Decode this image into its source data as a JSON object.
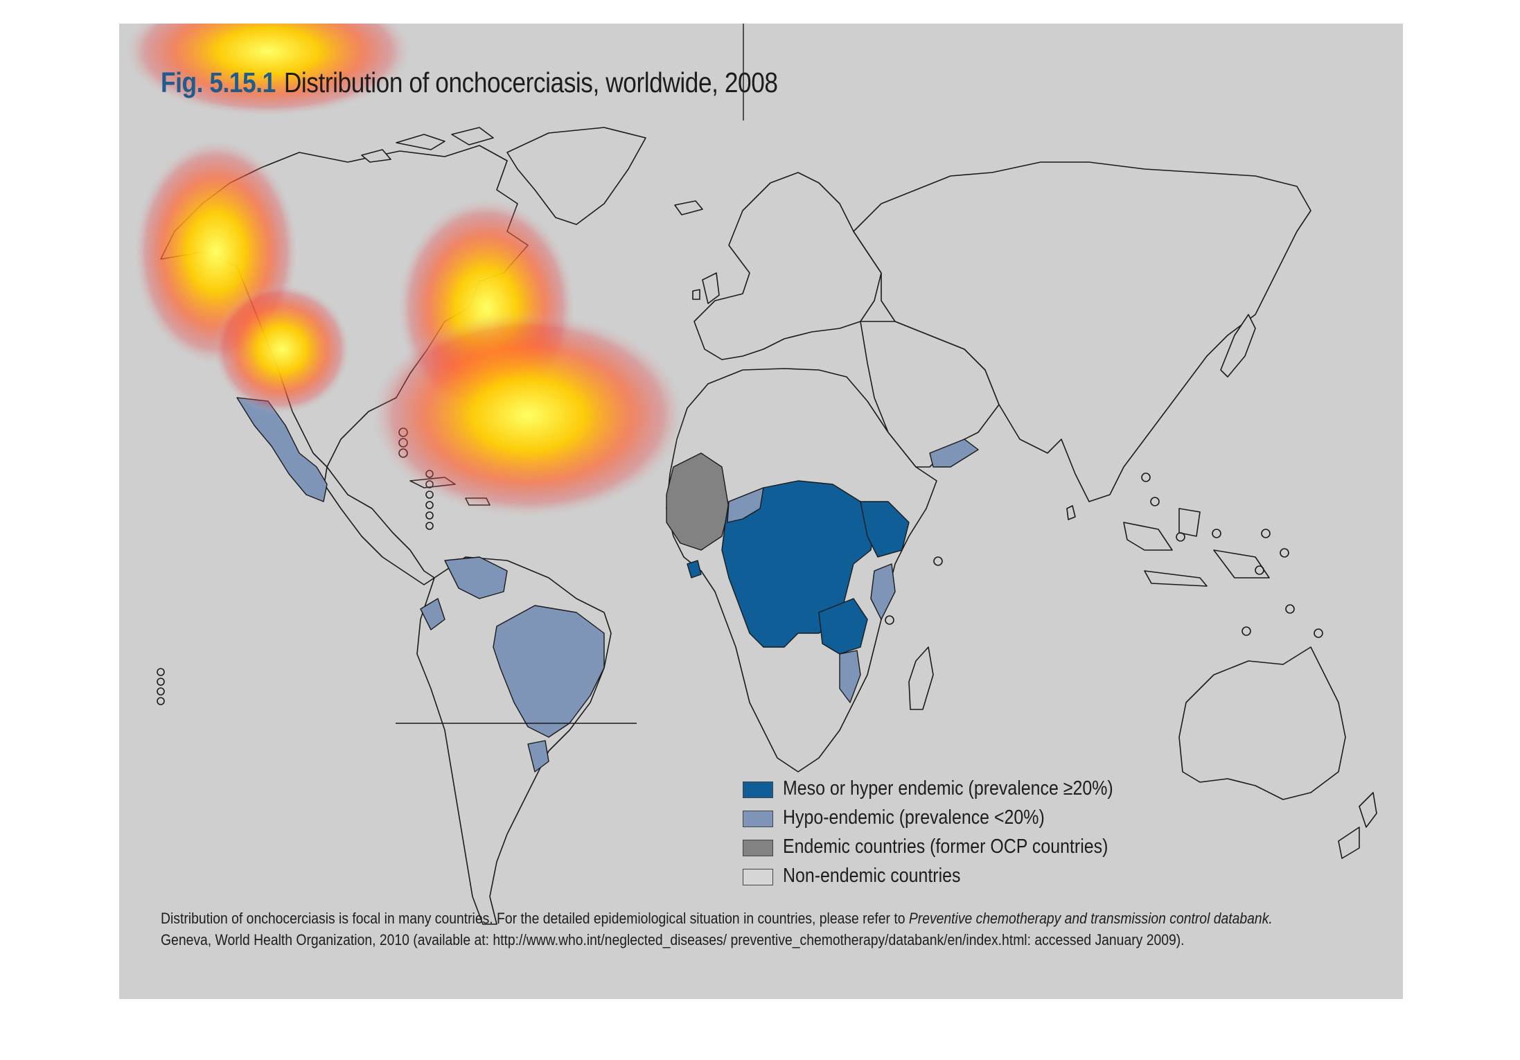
{
  "title": {
    "number": "Fig. 5.15.1",
    "text": "Distribution of onchocerciasis, worldwide, 2008"
  },
  "legend": [
    {
      "label": "Meso or hyper endemic (prevalence ≥20%)",
      "color": "#0f5e97"
    },
    {
      "label": "Hypo-endemic (prevalence <20%)",
      "color": "#7f95b7"
    },
    {
      "label": "Endemic countries (former OCP countries)",
      "color": "#828282"
    },
    {
      "label": "Non-endemic countries",
      "color": "#d6d6d6"
    }
  ],
  "note": {
    "line1_prefix": "Distribution of onchocerciasis is focal in many countries. For the detailed epidemiological situation in countries, please refer to ",
    "line1_italic": "Preventive chemotherapy and transmission control databank.",
    "line2": "Geneva, World Health Organization, 2010 (available at: http://www.who.int/neglected_diseases/ preventive_chemotherapy/databank/en/index.html: accessed January 2009)."
  },
  "colors": {
    "panel_bg": "#cfcfcf",
    "meso_hyper": "#0f5e97",
    "hypo": "#7f95b7",
    "former_ocp": "#828282",
    "non_endemic": "#d6d6d6",
    "title_number": "#1f5d8e"
  },
  "overlay": {
    "type": "attention heatmap",
    "colors": [
      "#ffff66",
      "#ffcc00",
      "#ff6633",
      "#e64d4d"
    ]
  }
}
